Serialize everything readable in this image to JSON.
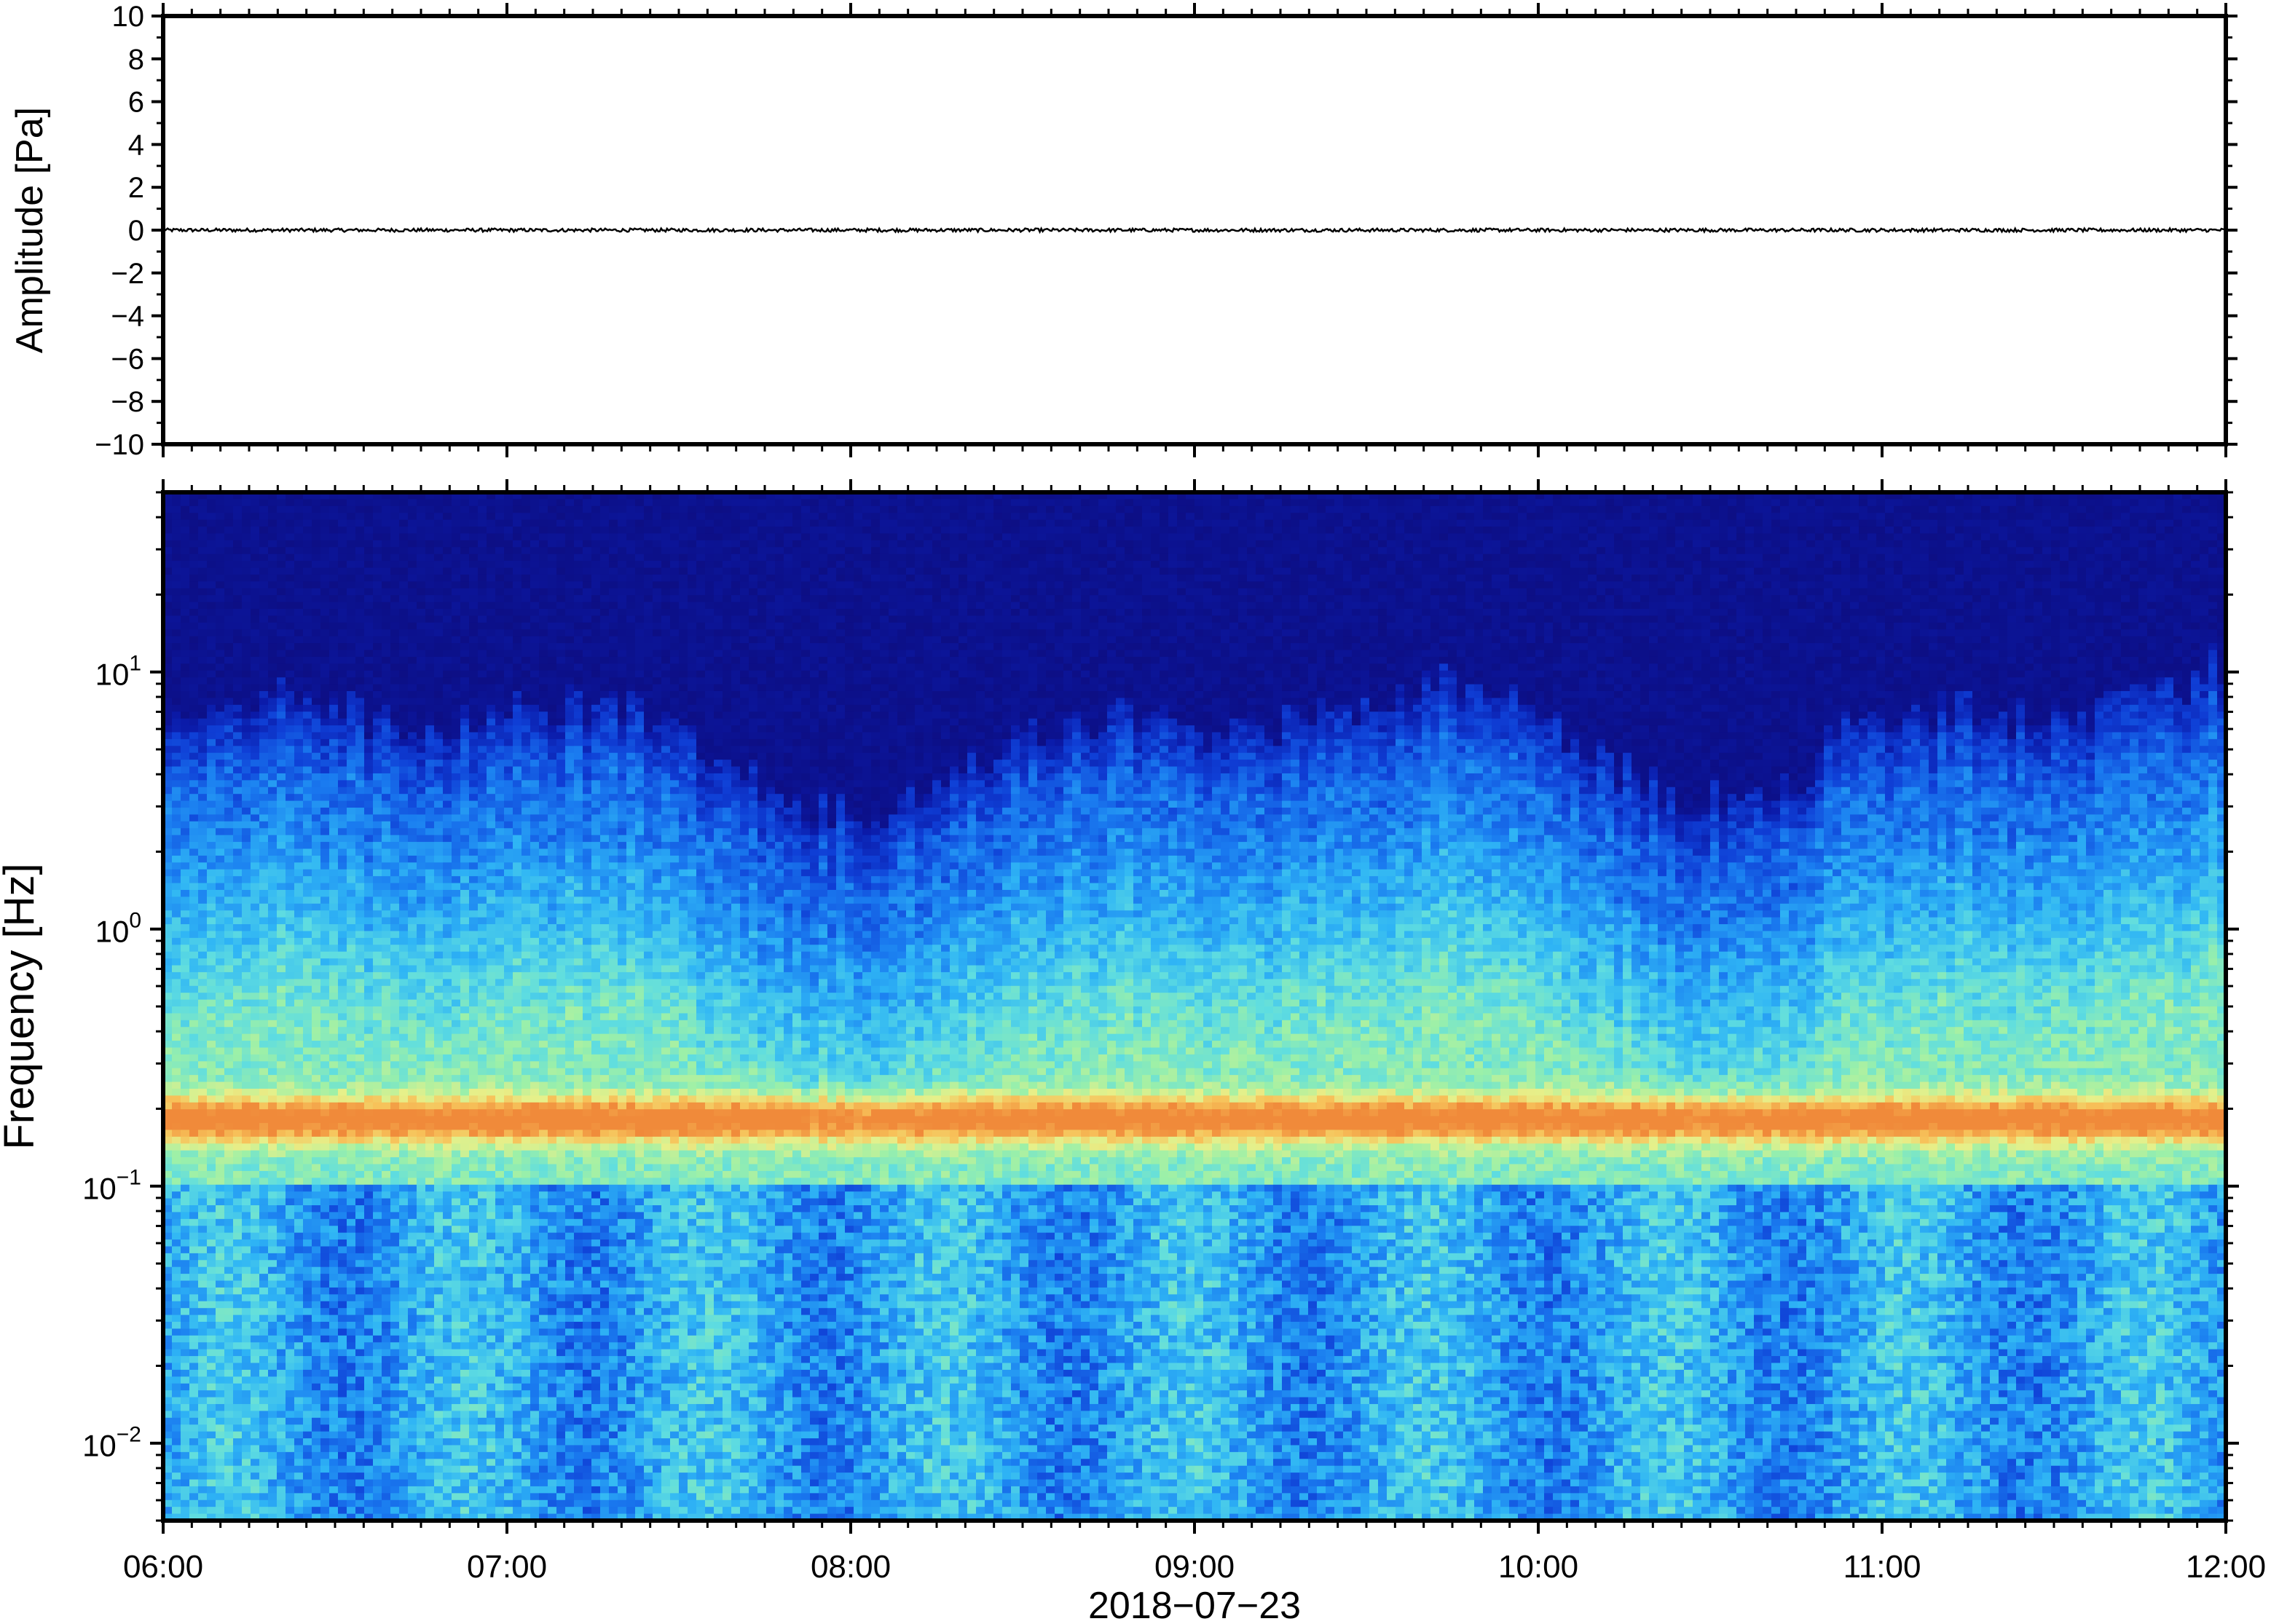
{
  "chart_data": [
    {
      "type": "line",
      "panel": "waveform",
      "ylabel": "Amplitude [Pa]",
      "ylim": [
        -10,
        10
      ],
      "yticks": [
        "10",
        "8",
        "6",
        "4",
        "2",
        "0",
        "−2",
        "−4",
        "−6",
        "−8",
        "−10"
      ],
      "ytick_values": [
        10,
        8,
        6,
        4,
        2,
        0,
        -2,
        -4,
        -6,
        -8,
        -10
      ],
      "series": [
        {
          "color": "#000000",
          "baseline": 0,
          "noise_amplitude": 0.08
        }
      ]
    },
    {
      "type": "heatmap",
      "panel": "spectrogram",
      "ylabel": "Frequency [Hz]",
      "yscale": "log",
      "ylim": [
        0.005,
        50
      ],
      "yticks": [
        {
          "value": 10,
          "base": "10",
          "exp": "1"
        },
        {
          "value": 1,
          "base": "10",
          "exp": "0"
        },
        {
          "value": 0.1,
          "base": "10",
          "exp": "−1"
        },
        {
          "value": 0.01,
          "base": "10",
          "exp": "−2"
        }
      ],
      "colormap": [
        "#0d0c7d",
        "#0b1aa8",
        "#0f3fd6",
        "#1a7cf0",
        "#2fb5f5",
        "#5fdde0",
        "#9cf0a8",
        "#e6f08a",
        "#f7c25a",
        "#f08a3a"
      ],
      "peak_band_hz": [
        0.15,
        0.22
      ],
      "notes_band": "energy concentrated below ~5 Hz, strongest near 0.18 Hz"
    }
  ],
  "xaxis": {
    "xlabel": "2018−07−23",
    "xlim": [
      "06:00",
      "12:00"
    ],
    "ticks": [
      "06:00",
      "07:00",
      "08:00",
      "09:00",
      "10:00",
      "11:00",
      "12:00"
    ]
  }
}
